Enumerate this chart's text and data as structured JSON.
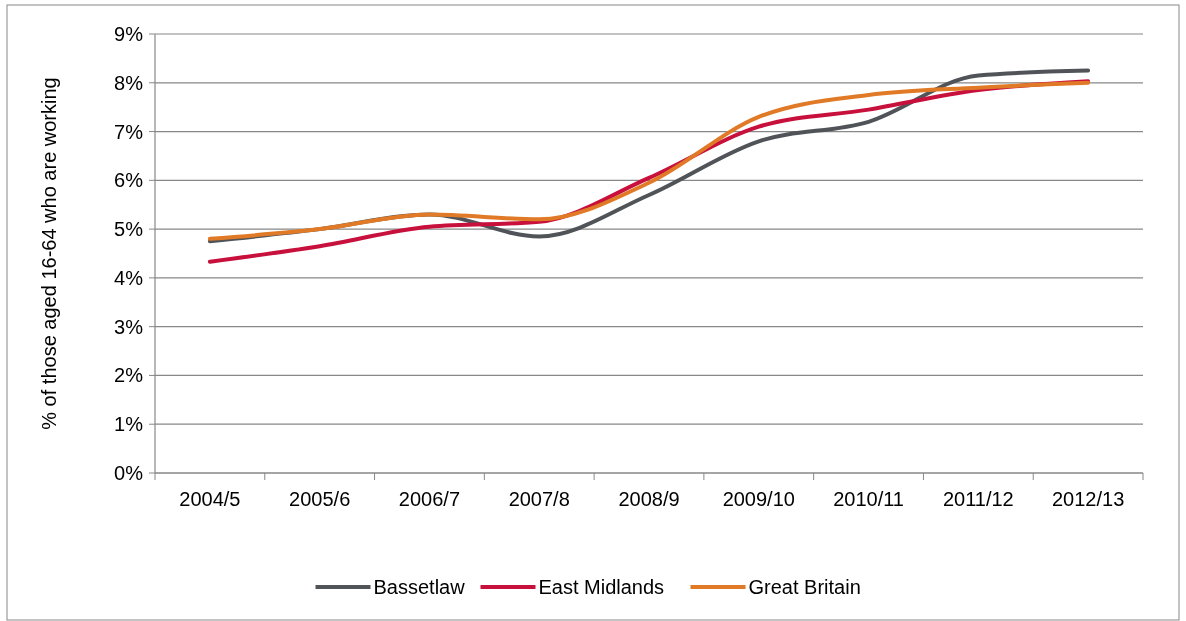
{
  "chart_data": {
    "type": "line",
    "ylabel": "% of those aged 16-64 who are working",
    "categories": [
      "2004/5",
      "2005/6",
      "2006/7",
      "2007/8",
      "2008/9",
      "2009/10",
      "2010/11",
      "2011/12",
      "2012/13"
    ],
    "series": [
      {
        "name": "Bassetlaw",
        "color": "#505459",
        "values": [
          4.75,
          5.0,
          5.3,
          4.85,
          5.7,
          6.8,
          7.2,
          8.15,
          8.25
        ]
      },
      {
        "name": "East Midlands",
        "color": "#c8103c",
        "values": [
          4.33,
          4.65,
          5.05,
          5.15,
          6.05,
          7.1,
          7.45,
          7.85,
          8.03
        ]
      },
      {
        "name": "Great Britain",
        "color": "#e07a26",
        "values": [
          4.8,
          5.0,
          5.3,
          5.2,
          5.95,
          7.3,
          7.75,
          7.9,
          8.0
        ]
      }
    ],
    "ylim": [
      0,
      9
    ],
    "yticks": [
      {
        "value": 0,
        "label": "0%"
      },
      {
        "value": 1,
        "label": "1%"
      },
      {
        "value": 2,
        "label": "2%"
      },
      {
        "value": 3,
        "label": "3%"
      },
      {
        "value": 4,
        "label": "4%"
      },
      {
        "value": 5,
        "label": "5%"
      },
      {
        "value": 6,
        "label": "6%"
      },
      {
        "value": 7,
        "label": "7%"
      },
      {
        "value": 8,
        "label": "8%"
      },
      {
        "value": 9,
        "label": "9%"
      }
    ],
    "grid": "y",
    "legend": "bottom",
    "marker": "none",
    "line_style": "solid"
  }
}
